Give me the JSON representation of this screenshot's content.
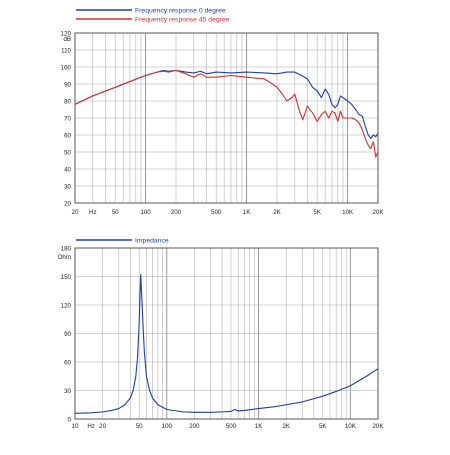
{
  "chart_data": [
    {
      "type": "line",
      "x_scale": "log",
      "xlim": [
        20,
        20000
      ],
      "ylim": [
        20,
        120
      ],
      "y_unit_label": "dB",
      "grid": true,
      "legend_position": "top-left",
      "x_ticks": [
        {
          "value": 20,
          "label": "20"
        },
        {
          "value": 30,
          "label": "Hz"
        },
        {
          "value": 50,
          "label": "50"
        },
        {
          "value": 100,
          "label": "100"
        },
        {
          "value": 200,
          "label": "200"
        },
        {
          "value": 500,
          "label": "500"
        },
        {
          "value": 1000,
          "label": "1K"
        },
        {
          "value": 2000,
          "label": "2K"
        },
        {
          "value": 5000,
          "label": "5K"
        },
        {
          "value": 10000,
          "label": "10K"
        },
        {
          "value": 20000,
          "label": "20K"
        }
      ],
      "y_ticks": [
        20,
        30,
        40,
        50,
        60,
        70,
        80,
        90,
        100,
        110,
        120
      ],
      "series": [
        {
          "name": "Frequency response 0 degree",
          "color": "#1f3fa8",
          "points": [
            [
              20,
              78
            ],
            [
              30,
              83
            ],
            [
              50,
              88
            ],
            [
              70,
              91.5
            ],
            [
              100,
              95
            ],
            [
              130,
              97
            ],
            [
              150,
              98
            ],
            [
              170,
              97.5
            ],
            [
              200,
              98
            ],
            [
              250,
              97
            ],
            [
              300,
              96.5
            ],
            [
              350,
              97.5
            ],
            [
              400,
              96
            ],
            [
              500,
              97
            ],
            [
              700,
              96.5
            ],
            [
              1000,
              97
            ],
            [
              1500,
              96.5
            ],
            [
              2000,
              96
            ],
            [
              2500,
              97
            ],
            [
              3000,
              97
            ],
            [
              3500,
              95
            ],
            [
              4000,
              93
            ],
            [
              4500,
              88
            ],
            [
              5000,
              86
            ],
            [
              5500,
              82
            ],
            [
              6000,
              87
            ],
            [
              6500,
              84
            ],
            [
              7000,
              78
            ],
            [
              7500,
              76
            ],
            [
              8000,
              78
            ],
            [
              8500,
              83
            ],
            [
              9000,
              82
            ],
            [
              10000,
              80
            ],
            [
              11000,
              78
            ],
            [
              12000,
              75
            ],
            [
              13000,
              72
            ],
            [
              14000,
              71
            ],
            [
              15000,
              65
            ],
            [
              16000,
              60
            ],
            [
              17000,
              58
            ],
            [
              18000,
              60
            ],
            [
              19000,
              59
            ],
            [
              20000,
              61
            ]
          ]
        },
        {
          "name": "Frequency response 45 degree",
          "color": "#d03030",
          "points": [
            [
              20,
              78
            ],
            [
              30,
              83
            ],
            [
              50,
              88
            ],
            [
              70,
              91.5
            ],
            [
              100,
              95
            ],
            [
              130,
              97
            ],
            [
              150,
              97.5
            ],
            [
              170,
              97
            ],
            [
              200,
              98
            ],
            [
              250,
              96
            ],
            [
              300,
              94
            ],
            [
              350,
              96
            ],
            [
              400,
              94
            ],
            [
              500,
              94
            ],
            [
              700,
              95
            ],
            [
              1000,
              94
            ],
            [
              1500,
              93
            ],
            [
              1800,
              90
            ],
            [
              2000,
              88
            ],
            [
              2200,
              85
            ],
            [
              2500,
              80
            ],
            [
              2800,
              82
            ],
            [
              3000,
              84
            ],
            [
              3300,
              75
            ],
            [
              3600,
              69
            ],
            [
              4000,
              77
            ],
            [
              4500,
              73
            ],
            [
              5000,
              68
            ],
            [
              5500,
              72
            ],
            [
              6000,
              74
            ],
            [
              6500,
              70
            ],
            [
              7000,
              74
            ],
            [
              7500,
              73
            ],
            [
              8000,
              68
            ],
            [
              8500,
              74
            ],
            [
              9000,
              70
            ],
            [
              10000,
              70
            ],
            [
              11000,
              70
            ],
            [
              12000,
              69
            ],
            [
              13000,
              67
            ],
            [
              14000,
              63
            ],
            [
              15000,
              58
            ],
            [
              16000,
              54
            ],
            [
              17000,
              52
            ],
            [
              18000,
              56
            ],
            [
              19000,
              47
            ],
            [
              20000,
              50
            ]
          ]
        }
      ]
    },
    {
      "type": "line",
      "x_scale": "log",
      "xlim": [
        10,
        20000
      ],
      "ylim": [
        0,
        180
      ],
      "y_unit_label": "Ohm",
      "grid": true,
      "legend_position": "top-left",
      "x_ticks": [
        {
          "value": 10,
          "label": "10"
        },
        {
          "value": 15,
          "label": "Hz"
        },
        {
          "value": 20,
          "label": "20"
        },
        {
          "value": 50,
          "label": "50"
        },
        {
          "value": 100,
          "label": "100"
        },
        {
          "value": 200,
          "label": "200"
        },
        {
          "value": 500,
          "label": "500"
        },
        {
          "value": 1000,
          "label": "1K"
        },
        {
          "value": 2000,
          "label": "2K"
        },
        {
          "value": 5000,
          "label": "5K"
        },
        {
          "value": 10000,
          "label": "10K"
        },
        {
          "value": 20000,
          "label": "20K"
        }
      ],
      "y_ticks": [
        0,
        30,
        60,
        90,
        120,
        150,
        180
      ],
      "series": [
        {
          "name": "Impedance",
          "color": "#1f3fa8",
          "points": [
            [
              10,
              6
            ],
            [
              15,
              6.5
            ],
            [
              20,
              7.5
            ],
            [
              25,
              9
            ],
            [
              30,
              11
            ],
            [
              35,
              15
            ],
            [
              40,
              22
            ],
            [
              43,
              30
            ],
            [
              46,
              45
            ],
            [
              48,
              65
            ],
            [
              50,
              100
            ],
            [
              51,
              128
            ],
            [
              52,
              152
            ],
            [
              53,
              135
            ],
            [
              55,
              100
            ],
            [
              57,
              70
            ],
            [
              60,
              45
            ],
            [
              65,
              30
            ],
            [
              70,
              22
            ],
            [
              80,
              15
            ],
            [
              100,
              10
            ],
            [
              150,
              7.5
            ],
            [
              200,
              7
            ],
            [
              300,
              7
            ],
            [
              400,
              7.5
            ],
            [
              500,
              8
            ],
            [
              550,
              10
            ],
            [
              600,
              8.5
            ],
            [
              700,
              9
            ],
            [
              1000,
              11
            ],
            [
              1500,
              13
            ],
            [
              2000,
              15
            ],
            [
              3000,
              18
            ],
            [
              5000,
              24
            ],
            [
              7000,
              29
            ],
            [
              10000,
              35
            ],
            [
              15000,
              45
            ],
            [
              20000,
              53
            ]
          ]
        }
      ]
    }
  ]
}
